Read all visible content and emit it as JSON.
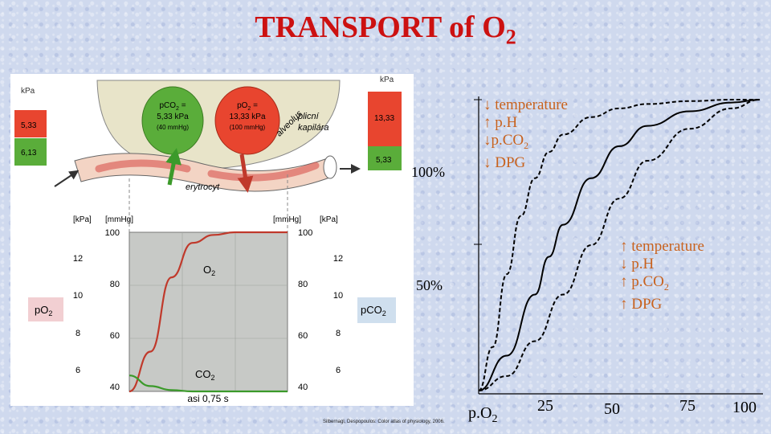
{
  "slide": {
    "title_main": "TRANSPORT of O",
    "title_sub": "2",
    "credit": "Silbernagl, Despopoulos: Color atlas of physiology, 2006."
  },
  "figure_left": {
    "unit_kpa_left": "kPa",
    "unit_kpa_right": "kPa",
    "left_bar_top_value": "5,33",
    "left_bar_bottom_value": "6,13",
    "right_bar_top_value": "13,33",
    "right_bar_bottom_value": "5,33",
    "bubble_co2_line1": "pCO",
    "bubble_co2_line1_sub": "2",
    "bubble_co2_line1_end": " =",
    "bubble_co2_line2": "5,33 kPa",
    "bubble_co2_line3": "(40 mmHg)",
    "bubble_o2_line1": "pO",
    "bubble_o2_line1_sub": "2",
    "bubble_o2_line1_end": " =",
    "bubble_o2_line2": "13,33 kPa",
    "bubble_o2_line3": "(100 mmHg)",
    "label_alveolus": "alveolus",
    "label_capillary_line1": "plicní",
    "label_capillary_line2": "kapilára",
    "label_erythrocyte": "erytrocyt",
    "axis_left_kpa": "[kPa]",
    "axis_left_mmhg": "[mmHg]",
    "axis_right_mmhg": "[mmHg]",
    "axis_right_kpa": "[kPa]",
    "left_kpa_ticks": [
      "12",
      "10",
      "8",
      "6"
    ],
    "left_mmhg_ticks": [
      "100",
      "80",
      "60",
      "40"
    ],
    "right_mmhg_ticks": [
      "100",
      "80",
      "60",
      "40"
    ],
    "right_kpa_ticks": [
      "12",
      "10",
      "8",
      "6"
    ],
    "curve_o2_label": "O",
    "curve_o2_sub": "2",
    "curve_co2_label": "CO",
    "curve_co2_sub": "2",
    "badge_po2": "pO",
    "badge_po2_sub": "2",
    "badge_pco2": "pCO",
    "badge_pco2_sub": "2",
    "time_label": "asi 0,75 s",
    "colors": {
      "red": "#e8452f",
      "green": "#5aad3a",
      "grey_panel": "#c7c9c6",
      "pink_badge": "#f2cfd2",
      "blue_badge": "#cfdfee"
    }
  },
  "figure_right": {
    "label_100": "100%",
    "label_50": "50%",
    "legend_left_shift": [
      {
        "arrow": "↓",
        "text": " temperature",
        "sub": ""
      },
      {
        "arrow": "↑",
        "text": " p.H",
        "sub": ""
      },
      {
        "arrow": "↓",
        "text": "p.CO",
        "sub": "2"
      },
      {
        "arrow": "↓",
        "text": " DPG",
        "sub": ""
      }
    ],
    "legend_right_shift": [
      {
        "arrow": "↑",
        "text": " temperature",
        "sub": ""
      },
      {
        "arrow": "↓",
        "text": " p.H",
        "sub": ""
      },
      {
        "arrow": "↑",
        "text": " p.CO",
        "sub": "2"
      },
      {
        "arrow": "↑",
        "text": " DPG",
        "sub": ""
      }
    ],
    "x_axis_label": "p.O",
    "x_axis_label_sub": "2",
    "x_ticks": [
      "25",
      "50",
      "75",
      "100"
    ],
    "colors": {
      "legend": "#c8621e",
      "curve": "#000000"
    }
  },
  "chart_data": [
    {
      "type": "line",
      "title": "",
      "x_unit": "mmHg",
      "y_unit": "mmHg",
      "xlabel": "asi 0,75 s",
      "ylabel": "[mmHg]",
      "ylim": [
        40,
        100
      ],
      "series": [
        {
          "name": "O2",
          "x": [
            0,
            0.1,
            0.2,
            0.3,
            0.4,
            0.5,
            0.6,
            0.75
          ],
          "y": [
            40,
            55,
            83,
            96,
            99,
            100,
            100,
            100
          ]
        },
        {
          "name": "CO2",
          "x": [
            0,
            0.1,
            0.2,
            0.3,
            0.4,
            0.5,
            0.6,
            0.75
          ],
          "y": [
            46,
            42,
            40.5,
            40,
            40,
            40,
            40,
            40
          ]
        }
      ]
    },
    {
      "type": "line",
      "title": "",
      "xlabel": "p.O2",
      "ylabel": "",
      "x_ticks": [
        25,
        50,
        75,
        100
      ],
      "y_ticks": [
        "50%",
        "100%"
      ],
      "xlim": [
        0,
        100
      ],
      "ylim": [
        0,
        100
      ],
      "series": [
        {
          "style": "dashed",
          "x": [
            0,
            5,
            10,
            15,
            20,
            25,
            30,
            40,
            50,
            60,
            75,
            90,
            100
          ],
          "y": [
            0,
            15,
            40,
            60,
            73,
            82,
            88,
            94,
            97,
            98.5,
            99.5,
            100,
            100
          ]
        },
        {
          "style": "solid",
          "x": [
            0,
            10,
            20,
            25,
            30,
            40,
            50,
            60,
            75,
            90,
            100
          ],
          "y": [
            0,
            12,
            33,
            46,
            57,
            73,
            84,
            91,
            96,
            99,
            100
          ]
        },
        {
          "style": "dashed",
          "x": [
            0,
            10,
            20,
            30,
            40,
            50,
            60,
            75,
            90,
            100
          ],
          "y": [
            0,
            5,
            17,
            33,
            50,
            66,
            79,
            90,
            97,
            100
          ]
        }
      ]
    }
  ]
}
